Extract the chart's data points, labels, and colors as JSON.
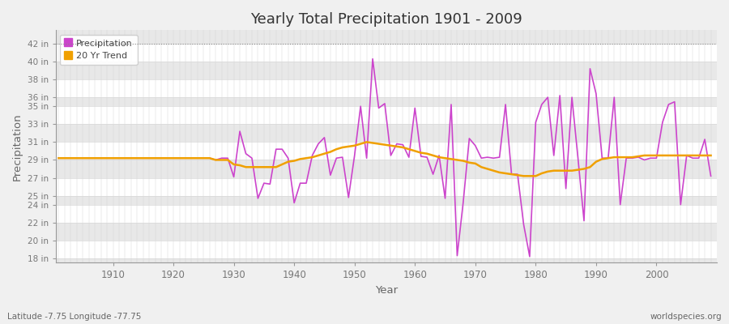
{
  "title": "Yearly Total Precipitation 1901 - 2009",
  "xlabel": "Year",
  "ylabel": "Precipitation",
  "lat_lon_label": "Latitude -7.75 Longitude -77.75",
  "source_label": "worldspecies.org",
  "bg_color": "#f0f0f0",
  "plot_bg_color": "#e8e8e8",
  "precip_color": "#cc44cc",
  "trend_color": "#f0a000",
  "ylim": [
    17.5,
    43.5
  ],
  "xlim": [
    1900.5,
    2010
  ],
  "yticks": [
    18,
    20,
    22,
    24,
    25,
    27,
    29,
    31,
    33,
    35,
    36,
    38,
    40,
    42
  ],
  "ytick_labels": [
    "18 in",
    "20 in",
    "22 in",
    "24 in",
    "25 in",
    "27 in",
    "29 in",
    "31 in",
    "33 in",
    "35 in",
    "36 in",
    "38 in",
    "40 in",
    "42 in"
  ],
  "xticks": [
    1910,
    1920,
    1930,
    1940,
    1950,
    1960,
    1970,
    1980,
    1990,
    2000
  ],
  "years": [
    1901,
    1902,
    1903,
    1904,
    1905,
    1906,
    1907,
    1908,
    1909,
    1910,
    1911,
    1912,
    1913,
    1914,
    1915,
    1916,
    1917,
    1918,
    1919,
    1920,
    1921,
    1922,
    1923,
    1924,
    1925,
    1926,
    1927,
    1928,
    1929,
    1930,
    1931,
    1932,
    1933,
    1934,
    1935,
    1936,
    1937,
    1938,
    1939,
    1940,
    1941,
    1942,
    1943,
    1944,
    1945,
    1946,
    1947,
    1948,
    1949,
    1950,
    1951,
    1952,
    1953,
    1954,
    1955,
    1956,
    1957,
    1958,
    1959,
    1960,
    1961,
    1962,
    1963,
    1964,
    1965,
    1966,
    1967,
    1968,
    1969,
    1970,
    1971,
    1972,
    1973,
    1974,
    1975,
    1976,
    1977,
    1978,
    1979,
    1980,
    1981,
    1982,
    1983,
    1984,
    1985,
    1986,
    1987,
    1988,
    1989,
    1990,
    1991,
    1992,
    1993,
    1994,
    1995,
    1996,
    1997,
    1998,
    1999,
    2000,
    2001,
    2002,
    2003,
    2004,
    2005,
    2006,
    2007,
    2008,
    2009
  ],
  "precip": [
    29.2,
    29.2,
    29.2,
    29.2,
    29.2,
    29.2,
    29.2,
    29.2,
    29.2,
    29.2,
    29.2,
    29.2,
    29.2,
    29.2,
    29.2,
    29.2,
    29.2,
    29.2,
    29.2,
    29.2,
    29.2,
    29.2,
    29.2,
    29.2,
    29.2,
    29.2,
    29.0,
    29.2,
    29.2,
    27.1,
    32.2,
    29.7,
    29.2,
    24.7,
    26.4,
    26.3,
    30.2,
    30.2,
    29.2,
    24.2,
    26.4,
    26.4,
    29.5,
    30.8,
    31.5,
    27.3,
    29.2,
    29.3,
    24.8,
    29.5,
    35.0,
    29.2,
    40.3,
    34.8,
    35.3,
    29.5,
    30.8,
    30.7,
    29.3,
    34.8,
    29.4,
    29.3,
    27.4,
    29.5,
    24.7,
    35.2,
    18.3,
    24.3,
    31.4,
    30.6,
    29.2,
    29.3,
    29.2,
    29.3,
    35.2,
    27.4,
    27.4,
    21.8,
    18.2,
    33.2,
    35.2,
    36.0,
    29.5,
    36.2,
    25.8,
    36.0,
    29.2,
    22.2,
    39.2,
    36.4,
    29.2,
    29.2,
    36.0,
    24.0,
    29.2,
    29.2,
    29.3,
    29.0,
    29.2,
    29.2,
    33.2,
    35.2,
    35.5,
    24.0,
    29.5,
    29.2,
    29.2,
    31.3,
    27.2
  ],
  "trend": [
    29.2,
    29.2,
    29.2,
    29.2,
    29.2,
    29.2,
    29.2,
    29.2,
    29.2,
    29.2,
    29.2,
    29.2,
    29.2,
    29.2,
    29.2,
    29.2,
    29.2,
    29.2,
    29.2,
    29.2,
    29.2,
    29.2,
    29.2,
    29.2,
    29.2,
    29.2,
    29.0,
    29.0,
    29.0,
    28.5,
    28.4,
    28.2,
    28.2,
    28.2,
    28.2,
    28.2,
    28.2,
    28.5,
    28.8,
    28.9,
    29.1,
    29.2,
    29.3,
    29.5,
    29.7,
    29.9,
    30.2,
    30.4,
    30.5,
    30.6,
    30.8,
    31.0,
    30.9,
    30.8,
    30.7,
    30.6,
    30.5,
    30.4,
    30.2,
    30.0,
    29.8,
    29.7,
    29.5,
    29.3,
    29.2,
    29.1,
    29.0,
    28.9,
    28.7,
    28.6,
    28.2,
    28.0,
    27.8,
    27.6,
    27.5,
    27.4,
    27.3,
    27.2,
    27.2,
    27.2,
    27.5,
    27.7,
    27.8,
    27.8,
    27.8,
    27.8,
    27.9,
    28.0,
    28.2,
    28.8,
    29.1,
    29.2,
    29.3,
    29.3,
    29.3,
    29.3,
    29.4,
    29.5,
    29.5,
    29.5,
    29.5,
    29.5,
    29.5,
    29.5,
    29.5,
    29.5,
    29.5,
    29.5,
    29.5
  ],
  "band_color_light": "#ebebeb",
  "band_color_mid": "#e0e0e0",
  "grid_color": "#d8d8d8",
  "vgrid_color": "#d0d0d0"
}
